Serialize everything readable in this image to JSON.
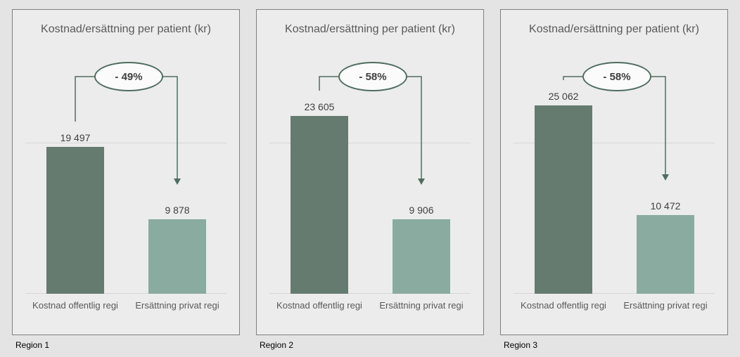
{
  "colors": {
    "page_bg": "#e4e4e4",
    "panel_bg": "#ececec",
    "panel_border": "#7f7f7f",
    "bar_dark": "#657b70",
    "bar_light": "#8aaba0",
    "accent_green": "#4f6d60",
    "oval_fill": "#fbfbfb",
    "title_text": "#595959",
    "value_text": "#404040",
    "axis_text": "#595959",
    "region_text": "#000000",
    "grid": "#d6d6d6"
  },
  "chart_data": [
    {
      "type": "bar",
      "title": "Kostnad/ersättning per patient (kr)",
      "region_label": "Region 1",
      "categories": [
        "Kostnad offentlig regi",
        "Ersättning privat regi"
      ],
      "values": [
        19497,
        9878
      ],
      "value_labels": [
        "19 497",
        "9 878"
      ],
      "annotation": "- 49%",
      "ylim": [
        0,
        31200
      ],
      "gridline_value": 20000,
      "grid": true,
      "legend": false
    },
    {
      "type": "bar",
      "title": "Kostnad/ersättning per patient (kr)",
      "region_label": "Region 2",
      "categories": [
        "Kostnad offentlig regi",
        "Ersättning privat regi"
      ],
      "values": [
        23605,
        9906
      ],
      "value_labels": [
        "23 605",
        "9 906"
      ],
      "annotation": "- 58%",
      "ylim": [
        0,
        31200
      ],
      "gridline_value": 20000,
      "grid": true,
      "legend": false
    },
    {
      "type": "bar",
      "title": "Kostnad/ersättning per patient (kr)",
      "region_label": "Region 3",
      "categories": [
        "Kostnad offentlig regi",
        "Ersättning privat regi"
      ],
      "values": [
        25062,
        10472
      ],
      "value_labels": [
        "25 062",
        "10 472"
      ],
      "annotation": "- 58%",
      "ylim": [
        0,
        31200
      ],
      "gridline_value": 20000,
      "grid": true,
      "legend": false
    }
  ]
}
